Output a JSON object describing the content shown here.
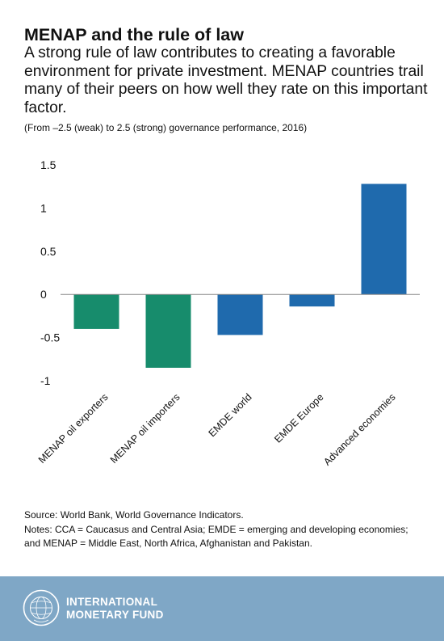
{
  "header": {
    "title": "MENAP and the rule of law",
    "subtitle": "A strong rule of law contributes to creating a favorable environment for private investment. MENAP countries trail many of their peers on how well they rate on this important factor.",
    "units": "(From –2.5 (weak) to 2.5 (strong) governance performance, 2016)"
  },
  "chart_data": {
    "type": "bar",
    "title": "MENAP and the rule of law",
    "categories": [
      "MENAP oil exporters",
      "MENAP oil importers",
      "EMDE world",
      "EMDE Europe",
      "Advanced economies"
    ],
    "values": [
      -0.4,
      -0.85,
      -0.47,
      -0.14,
      1.28
    ],
    "colors": [
      "#178c6c",
      "#178c6c",
      "#1f6aad",
      "#1f6aad",
      "#1f6aad"
    ],
    "ylim": [
      -1,
      1.5
    ],
    "yticks": [
      -1,
      -0.5,
      0,
      0.5,
      1,
      1.5
    ],
    "ytick_labels": [
      "-1",
      "-0.5",
      "0",
      "0.5",
      "1",
      "1.5"
    ],
    "grid": false,
    "legend": "none"
  },
  "notes": {
    "source": "Source: World Bank, World Governance Indicators.",
    "notes_line1": "Notes: CCA = Caucasus and Central Asia; EMDE = emerging and developing economies;",
    "notes_line2": "and MENAP = Middle East, North Africa, Afghanistan and Pakistan."
  },
  "footer": {
    "org_line1": "INTERNATIONAL",
    "org_line2": "MONETARY FUND",
    "logo_text": "INTERNATIONAL MONETARY FUND",
    "background": "#7fa7c6"
  }
}
